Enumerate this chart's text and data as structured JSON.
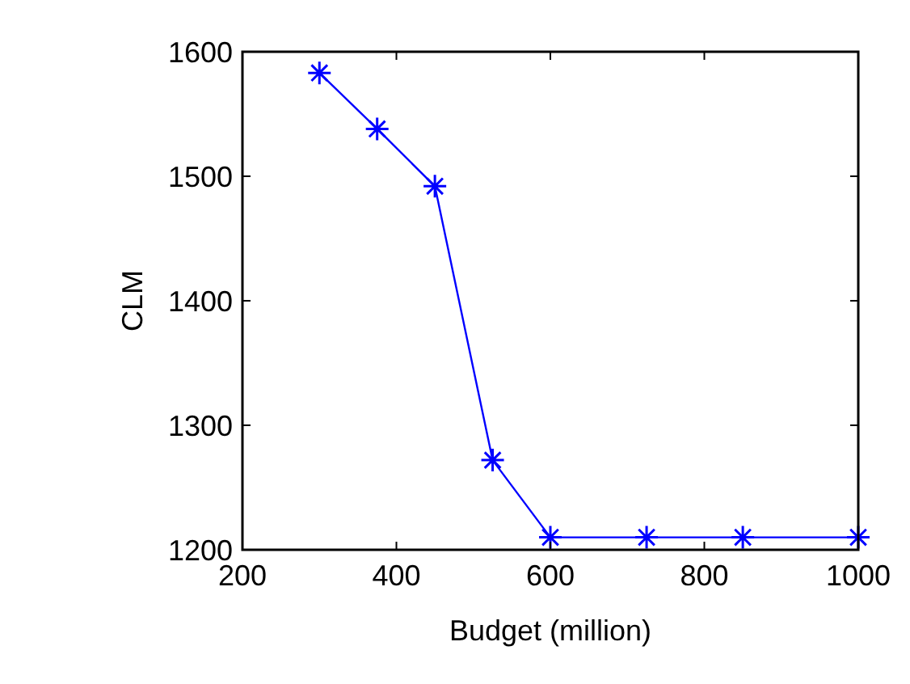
{
  "chart_data": {
    "type": "line",
    "xlabel": "Budget (million)",
    "ylabel": "CLM",
    "x": [
      300,
      375,
      450,
      525,
      600,
      725,
      850,
      1000
    ],
    "series": [
      {
        "color": "#0000ff",
        "values": [
          1583,
          1538,
          1492,
          1272,
          1210,
          1210,
          1210,
          1210
        ]
      }
    ],
    "xlim": [
      200,
      1000
    ],
    "xticks": [
      200,
      400,
      600,
      800,
      1000
    ],
    "ylim": [
      1200,
      1600
    ],
    "yticks": [
      1200,
      1300,
      1400,
      1500,
      1600
    ],
    "grid": false,
    "marker": "cross",
    "line_style": "solid"
  }
}
